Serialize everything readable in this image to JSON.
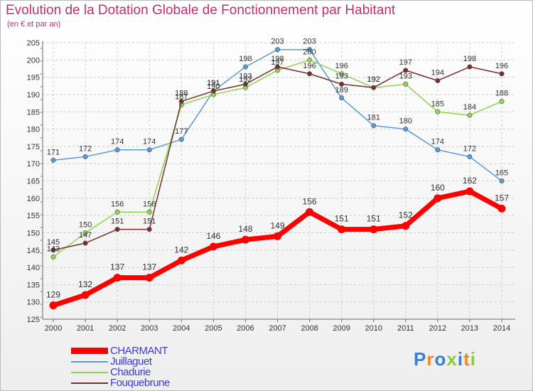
{
  "title": "Evolution de la Dotation Globale de Fonctionnement par Habitant",
  "subtitle": "(en € et par an)",
  "logo": {
    "text": "Proxiti"
  },
  "colors": {
    "CHARMANT": "#ff0000",
    "Juillaguet": "#5b9bd5",
    "Chadurie": "#8ed64e",
    "Fouquebrune": "#7a2e2e",
    "grid": "#cccccc",
    "axis": "#666666"
  },
  "chart_data": {
    "type": "line",
    "title": "Evolution de la Dotation Globale de Fonctionnement par Habitant",
    "ylabel": "(en € et par an)",
    "xlabel": "",
    "x": [
      "2000",
      "2001",
      "2002",
      "2003",
      "2004",
      "2005",
      "2006",
      "2007",
      "2008",
      "2009",
      "2010",
      "2011",
      "2012",
      "2013",
      "2014"
    ],
    "ylim": [
      125,
      205
    ],
    "yticks": [
      125,
      130,
      135,
      140,
      145,
      150,
      155,
      160,
      165,
      170,
      175,
      180,
      185,
      190,
      195,
      200,
      205
    ],
    "grid": true,
    "legend_position": "bottom-left",
    "series": [
      {
        "name": "CHARMANT",
        "values": [
          129,
          132,
          137,
          137,
          142,
          146,
          148,
          149,
          156,
          151,
          151,
          152,
          160,
          162,
          157
        ]
      },
      {
        "name": "Juillaguet",
        "values": [
          171,
          172,
          174,
          174,
          177,
          191,
          198,
          203,
          203,
          189,
          181,
          180,
          174,
          172,
          165
        ]
      },
      {
        "name": "Chadurie",
        "values": [
          143,
          150,
          156,
          156,
          187,
          190,
          192,
          197,
          200,
          196,
          192,
          193,
          185,
          184,
          188
        ]
      },
      {
        "name": "Fouquebrune",
        "values": [
          145,
          147,
          151,
          151,
          188,
          191,
          193,
          198,
          196,
          193,
          192,
          197,
          194,
          198,
          196
        ]
      }
    ]
  }
}
